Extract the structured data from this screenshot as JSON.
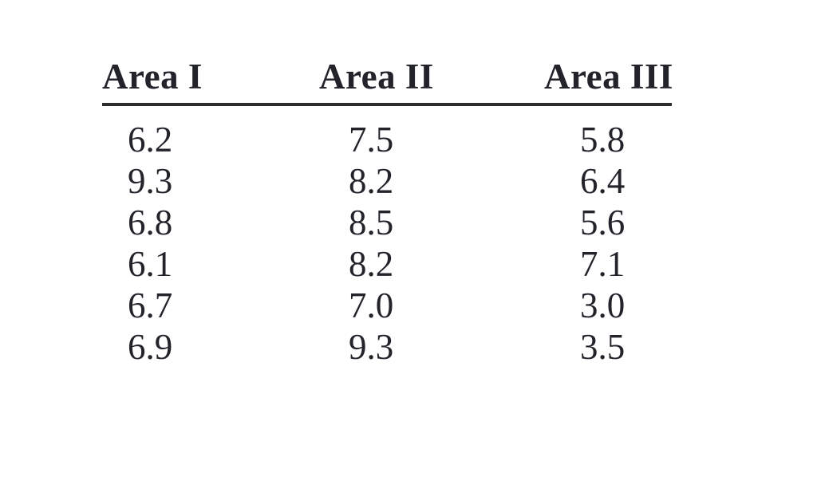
{
  "table": {
    "columns": [
      "Area I",
      "Area II",
      "Area III"
    ],
    "rows": [
      [
        "6.2",
        "7.5",
        "5.8"
      ],
      [
        "9.3",
        "8.2",
        "6.4"
      ],
      [
        "6.8",
        "8.5",
        "5.6"
      ],
      [
        "6.1",
        "8.2",
        "7.1"
      ],
      [
        "6.7",
        "7.0",
        "3.0"
      ],
      [
        "6.9",
        "9.3",
        "3.5"
      ]
    ]
  },
  "chart_data": {
    "type": "table",
    "title": "",
    "columns": [
      "Area I",
      "Area II",
      "Area III"
    ],
    "series": [
      {
        "name": "Area I",
        "values": [
          6.2,
          9.3,
          6.8,
          6.1,
          6.7,
          6.9
        ]
      },
      {
        "name": "Area II",
        "values": [
          7.5,
          8.2,
          8.5,
          8.2,
          7.0,
          9.3
        ]
      },
      {
        "name": "Area III",
        "values": [
          5.8,
          6.4,
          5.6,
          7.1,
          3.0,
          3.5
        ]
      }
    ],
    "layout_hints": {
      "header_rule": true,
      "grid": false,
      "alignment": "left"
    }
  },
  "colors": {
    "background": "#ffffff",
    "text": "#23232b",
    "rule": "#2e2e2e"
  }
}
